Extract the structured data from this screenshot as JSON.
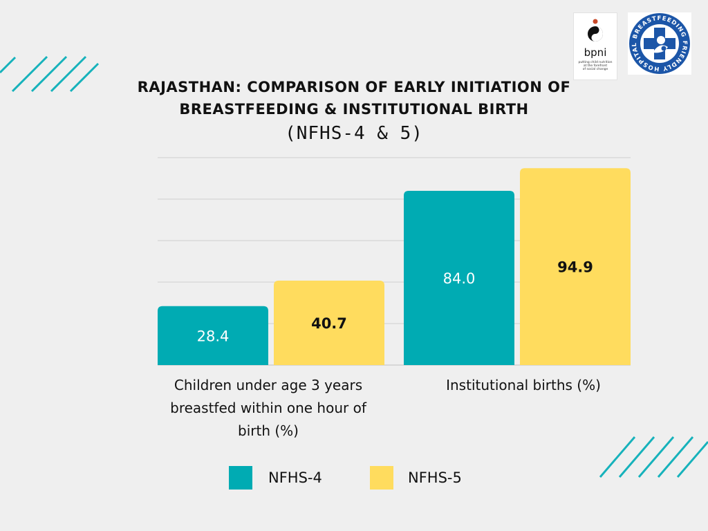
{
  "title": {
    "line1": "RAJASTHAN: COMPARISON OF EARLY INITIATION OF",
    "line2": "BREASTFEEDING & INSTITUTIONAL BIRTH",
    "line3": "(NFHS-4 & 5)"
  },
  "logos": {
    "bpni": {
      "name": "bpni",
      "tagline": [
        "putting child nutrition",
        "at the forefront",
        "of social change"
      ]
    },
    "bfh": {
      "ring_text": "BREASTFEEDING FRIENDLY HOSPITAL"
    }
  },
  "colors": {
    "nfhs4": "#00abb3",
    "nfhs5": "#ffdc5e",
    "background": "#efefef",
    "grid": "#cfcfcf",
    "accent": "#16b2bb"
  },
  "chart_data": {
    "type": "bar",
    "categories": [
      [
        "Children under age 3 years",
        "breastfed within one hour of",
        "birth (%)"
      ],
      [
        "Institutional births (%)"
      ]
    ],
    "series": [
      {
        "name": "NFHS-4",
        "values": [
          28.4,
          84.0
        ],
        "labels": [
          "28.4",
          "84.0"
        ]
      },
      {
        "name": "NFHS-5",
        "values": [
          40.7,
          94.9
        ],
        "labels": [
          "40.7",
          "94.9"
        ]
      }
    ],
    "ylim": [
      0,
      100
    ],
    "grid": true,
    "legend": "bottom"
  }
}
